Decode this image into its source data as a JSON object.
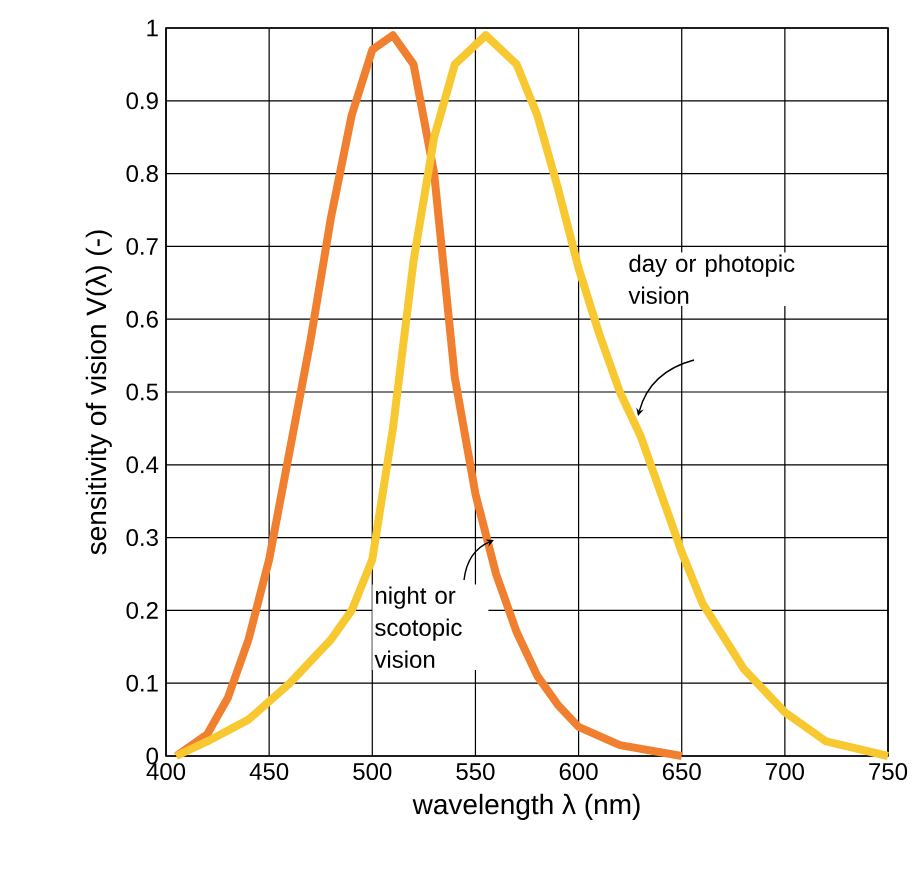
{
  "chart_data": {
    "type": "line",
    "xlabel": "wavelength λ (nm)",
    "ylabel": "sensitivity of vision V(λ) (-)",
    "xlim": [
      400,
      750
    ],
    "ylim": [
      0,
      1
    ],
    "xticks": [
      400,
      450,
      500,
      550,
      600,
      650,
      700,
      750
    ],
    "yticks": [
      0,
      0.1,
      0.2,
      0.3,
      0.4,
      0.5,
      0.6,
      0.7,
      0.8,
      0.9,
      1
    ],
    "grid": true,
    "marker": "none",
    "line_style": "solid",
    "series": [
      {
        "color": "#f08030",
        "x": [
          405,
          420,
          430,
          440,
          450,
          460,
          470,
          480,
          490,
          500,
          510,
          520,
          530,
          540,
          550,
          560,
          570,
          580,
          590,
          600,
          620,
          650
        ],
        "values": [
          0,
          0.03,
          0.08,
          0.16,
          0.27,
          0.42,
          0.57,
          0.74,
          0.88,
          0.97,
          0.99,
          0.95,
          0.8,
          0.52,
          0.36,
          0.25,
          0.17,
          0.11,
          0.07,
          0.04,
          0.015,
          0
        ]
      },
      {
        "color": "#f8c830",
        "x": [
          405,
          420,
          440,
          460,
          480,
          490,
          500,
          510,
          520,
          530,
          540,
          555,
          570,
          580,
          590,
          600,
          610,
          620,
          630,
          640,
          650,
          660,
          680,
          700,
          720,
          750
        ],
        "values": [
          0,
          0.02,
          0.05,
          0.1,
          0.16,
          0.2,
          0.27,
          0.45,
          0.68,
          0.85,
          0.95,
          0.99,
          0.95,
          0.88,
          0.78,
          0.67,
          0.58,
          0.5,
          0.44,
          0.36,
          0.28,
          0.21,
          0.12,
          0.06,
          0.02,
          0
        ]
      }
    ],
    "annotations": [
      "day or photopic vision",
      "night or scotopic vision"
    ]
  }
}
